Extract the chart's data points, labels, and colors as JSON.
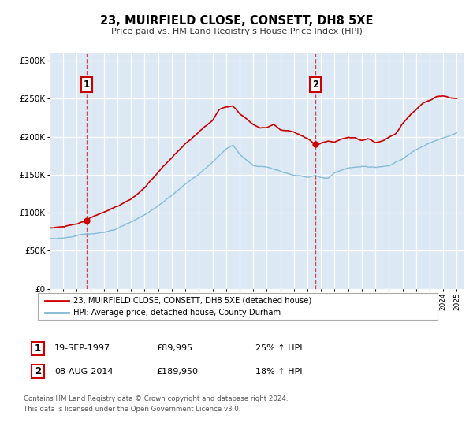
{
  "title": "23, MUIRFIELD CLOSE, CONSETT, DH8 5XE",
  "subtitle": "Price paid vs. HM Land Registry's House Price Index (HPI)",
  "legend_line1": "23, MUIRFIELD CLOSE, CONSETT, DH8 5XE (detached house)",
  "legend_line2": "HPI: Average price, detached house, County Durham",
  "transaction1_date": "19-SEP-1997",
  "transaction1_price": "£89,995",
  "transaction1_hpi": "25% ↑ HPI",
  "transaction2_date": "08-AUG-2014",
  "transaction2_price": "£189,950",
  "transaction2_hpi": "18% ↑ HPI",
  "footnote1": "Contains HM Land Registry data © Crown copyright and database right 2024.",
  "footnote2": "This data is licensed under the Open Government Licence v3.0.",
  "red_color": "#cc0000",
  "blue_color": "#7db8d4",
  "plot_bg_color": "#dce9f5",
  "grid_color": "#ffffff",
  "ylim": [
    0,
    310000
  ],
  "yticks": [
    0,
    50000,
    100000,
    150000,
    200000,
    250000,
    300000
  ],
  "transaction1_x": 1997.72,
  "transaction1_y": 89995,
  "transaction2_x": 2014.6,
  "transaction2_y": 189950,
  "xlim_start": 1995.0,
  "xlim_end": 2025.5
}
